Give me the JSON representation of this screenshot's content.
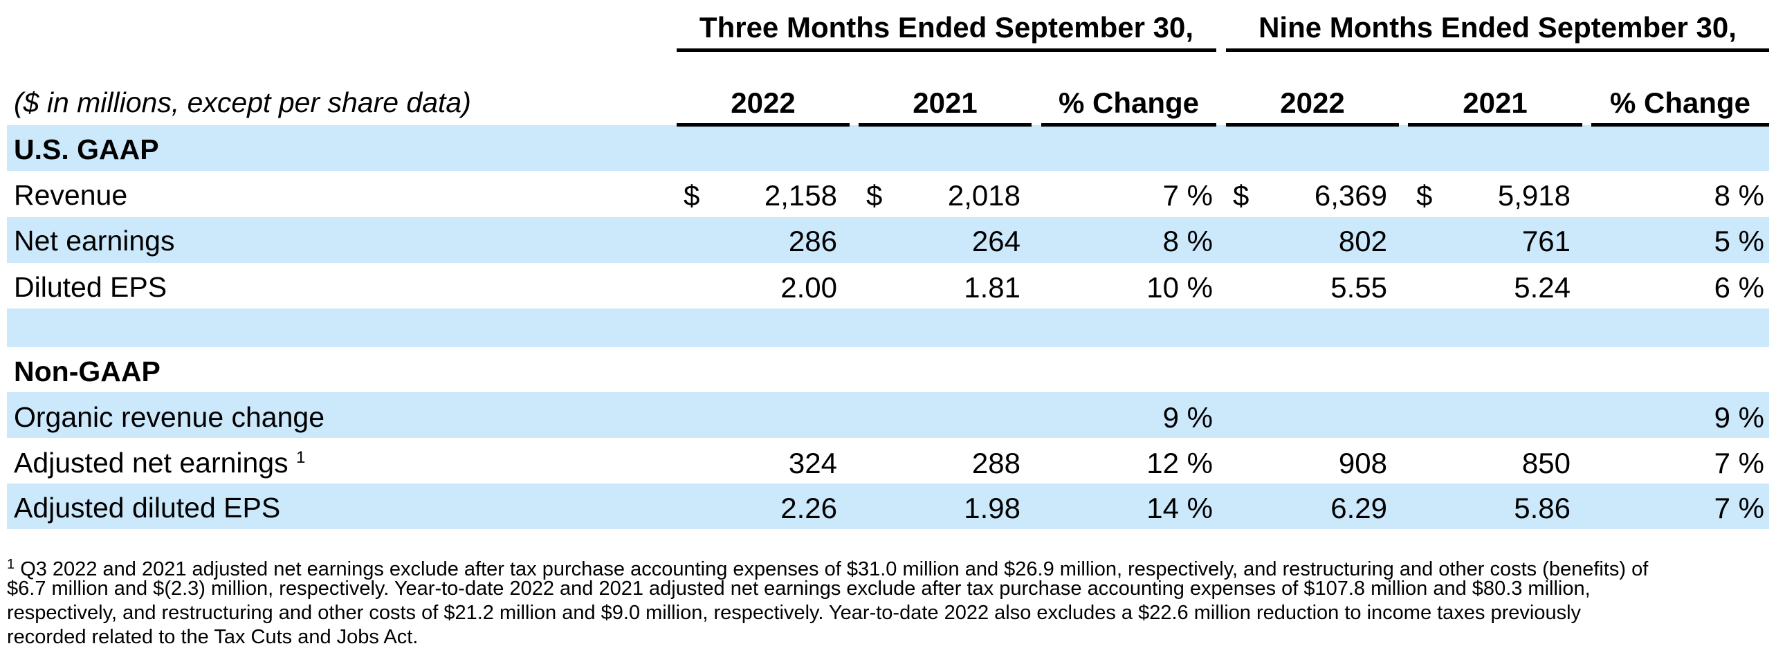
{
  "header": {
    "group_three": "Three Months Ended September 30,",
    "group_nine": "Nine Months Ended September 30,",
    "units_note": "($ in millions, except per share data)",
    "col_2022": "2022",
    "col_2021": "2021",
    "col_change": "% Change"
  },
  "sections": {
    "gaap": "U.S. GAAP",
    "non_gaap": "Non-GAAP"
  },
  "currency": "$",
  "rows": {
    "revenue": {
      "label": "Revenue",
      "q22": "2,158",
      "q21": "2,018",
      "qchg": "7 %",
      "y22": "6,369",
      "y21": "5,918",
      "ychg": "8 %"
    },
    "net_earnings": {
      "label": "Net earnings",
      "q22": "286",
      "q21": "264",
      "qchg": "8 %",
      "y22": "802",
      "y21": "761",
      "ychg": "5 %"
    },
    "diluted_eps": {
      "label": "Diluted EPS",
      "q22": "2.00",
      "q21": "1.81",
      "qchg": "10 %",
      "y22": "5.55",
      "y21": "5.24",
      "ychg": "6 %"
    },
    "organic": {
      "label": "Organic revenue change",
      "qchg": "9 %",
      "ychg": "9 %"
    },
    "adj_net": {
      "label": "Adjusted net earnings",
      "footnote_mark": "1",
      "q22": "324",
      "q21": "288",
      "qchg": "12 %",
      "y22": "908",
      "y21": "850",
      "ychg": "7 %"
    },
    "adj_eps": {
      "label": "Adjusted diluted EPS",
      "q22": "2.26",
      "q21": "1.98",
      "qchg": "14 %",
      "y22": "6.29",
      "y21": "5.86",
      "ychg": "7 %"
    }
  },
  "footnote": {
    "mark": "1",
    "line1": "Q3 2022 and 2021 adjusted net earnings exclude after tax purchase accounting expenses of $31.0 million and $26.9 million, respectively, and restructuring and other costs (benefits) of",
    "line2": "$6.7 million and $(2.3) million, respectively. Year-to-date 2022 and 2021 adjusted net earnings exclude after tax purchase accounting expenses of $107.8 million and $80.3 million,",
    "line3": "respectively, and restructuring and other costs of $21.2 million and $9.0 million, respectively. Year-to-date 2022 also excludes a $22.6 million reduction to income taxes previously",
    "line4": "recorded related to the Tax Cuts and Jobs Act."
  },
  "colors": {
    "band": "#cce8fb",
    "text": "#000000"
  }
}
